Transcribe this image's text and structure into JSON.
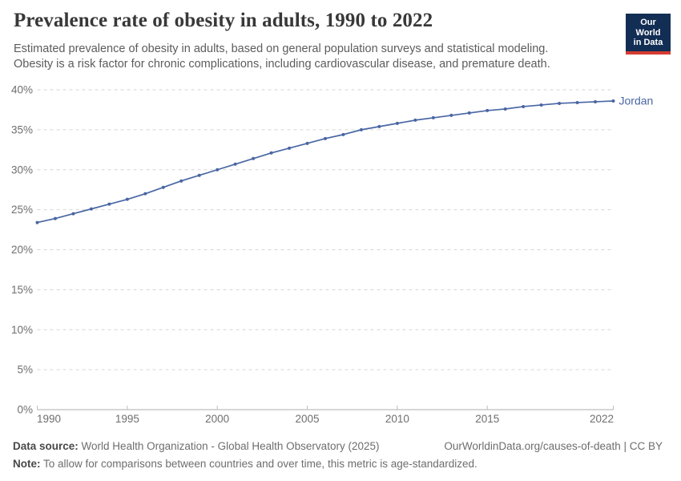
{
  "header": {
    "title": "Prevalence rate of obesity in adults, 1990 to 2022",
    "subtitle": "Estimated prevalence of obesity in adults, based on general population surveys and statistical modeling.\nObesity is a risk factor for chronic complications, including cardiovascular disease, and premature death."
  },
  "logo": {
    "line1": "Our World",
    "line2": "in Data",
    "bg_color": "#132E54",
    "accent_color": "#D53C32"
  },
  "chart_data": {
    "type": "line",
    "title": "Prevalence rate of obesity in adults, 1990 to 2022",
    "xlabel": "",
    "ylabel": "",
    "ylim": [
      0,
      40
    ],
    "yticks": [
      0,
      5,
      10,
      15,
      20,
      25,
      30,
      35,
      40
    ],
    "ytick_format": "percent",
    "xticks": [
      1990,
      1995,
      2000,
      2005,
      2010,
      2015,
      2022
    ],
    "grid": "horizontal-dashed",
    "legend": "end-of-line-label",
    "x": [
      1990,
      1991,
      1992,
      1993,
      1994,
      1995,
      1996,
      1997,
      1998,
      1999,
      2000,
      2001,
      2002,
      2003,
      2004,
      2005,
      2006,
      2007,
      2008,
      2009,
      2010,
      2011,
      2012,
      2013,
      2014,
      2015,
      2016,
      2017,
      2018,
      2019,
      2020,
      2021,
      2022
    ],
    "series": [
      {
        "name": "Jordan",
        "color": "#4966A3",
        "values": [
          23.4,
          23.9,
          24.5,
          25.1,
          25.7,
          26.3,
          27.0,
          27.8,
          28.6,
          29.3,
          30.0,
          30.7,
          31.4,
          32.1,
          32.7,
          33.3,
          33.9,
          34.4,
          35.0,
          35.4,
          35.8,
          36.2,
          36.5,
          36.8,
          37.1,
          37.4,
          37.6,
          37.9,
          38.1,
          38.3,
          38.4,
          38.5,
          38.6
        ]
      }
    ]
  },
  "footer": {
    "datasource_label": "Data source:",
    "datasource": "World Health Organization - Global Health Observatory (2025)",
    "note_label": "Note:",
    "note": "To allow for comparisons between countries and over time, this metric is age-standardized.",
    "attribution": "OurWorldinData.org/causes-of-death | CC BY"
  },
  "colors": {
    "line": "#4966A3",
    "entity_label": "#4966A3",
    "grid": "#D6D6D6",
    "axis": "#ADADAD",
    "tick": "#BDBDBD",
    "tick_label": "#6E6E6E",
    "title": "#383838",
    "subtitle": "#5C5C5C",
    "footer": "#6D6D6D"
  }
}
